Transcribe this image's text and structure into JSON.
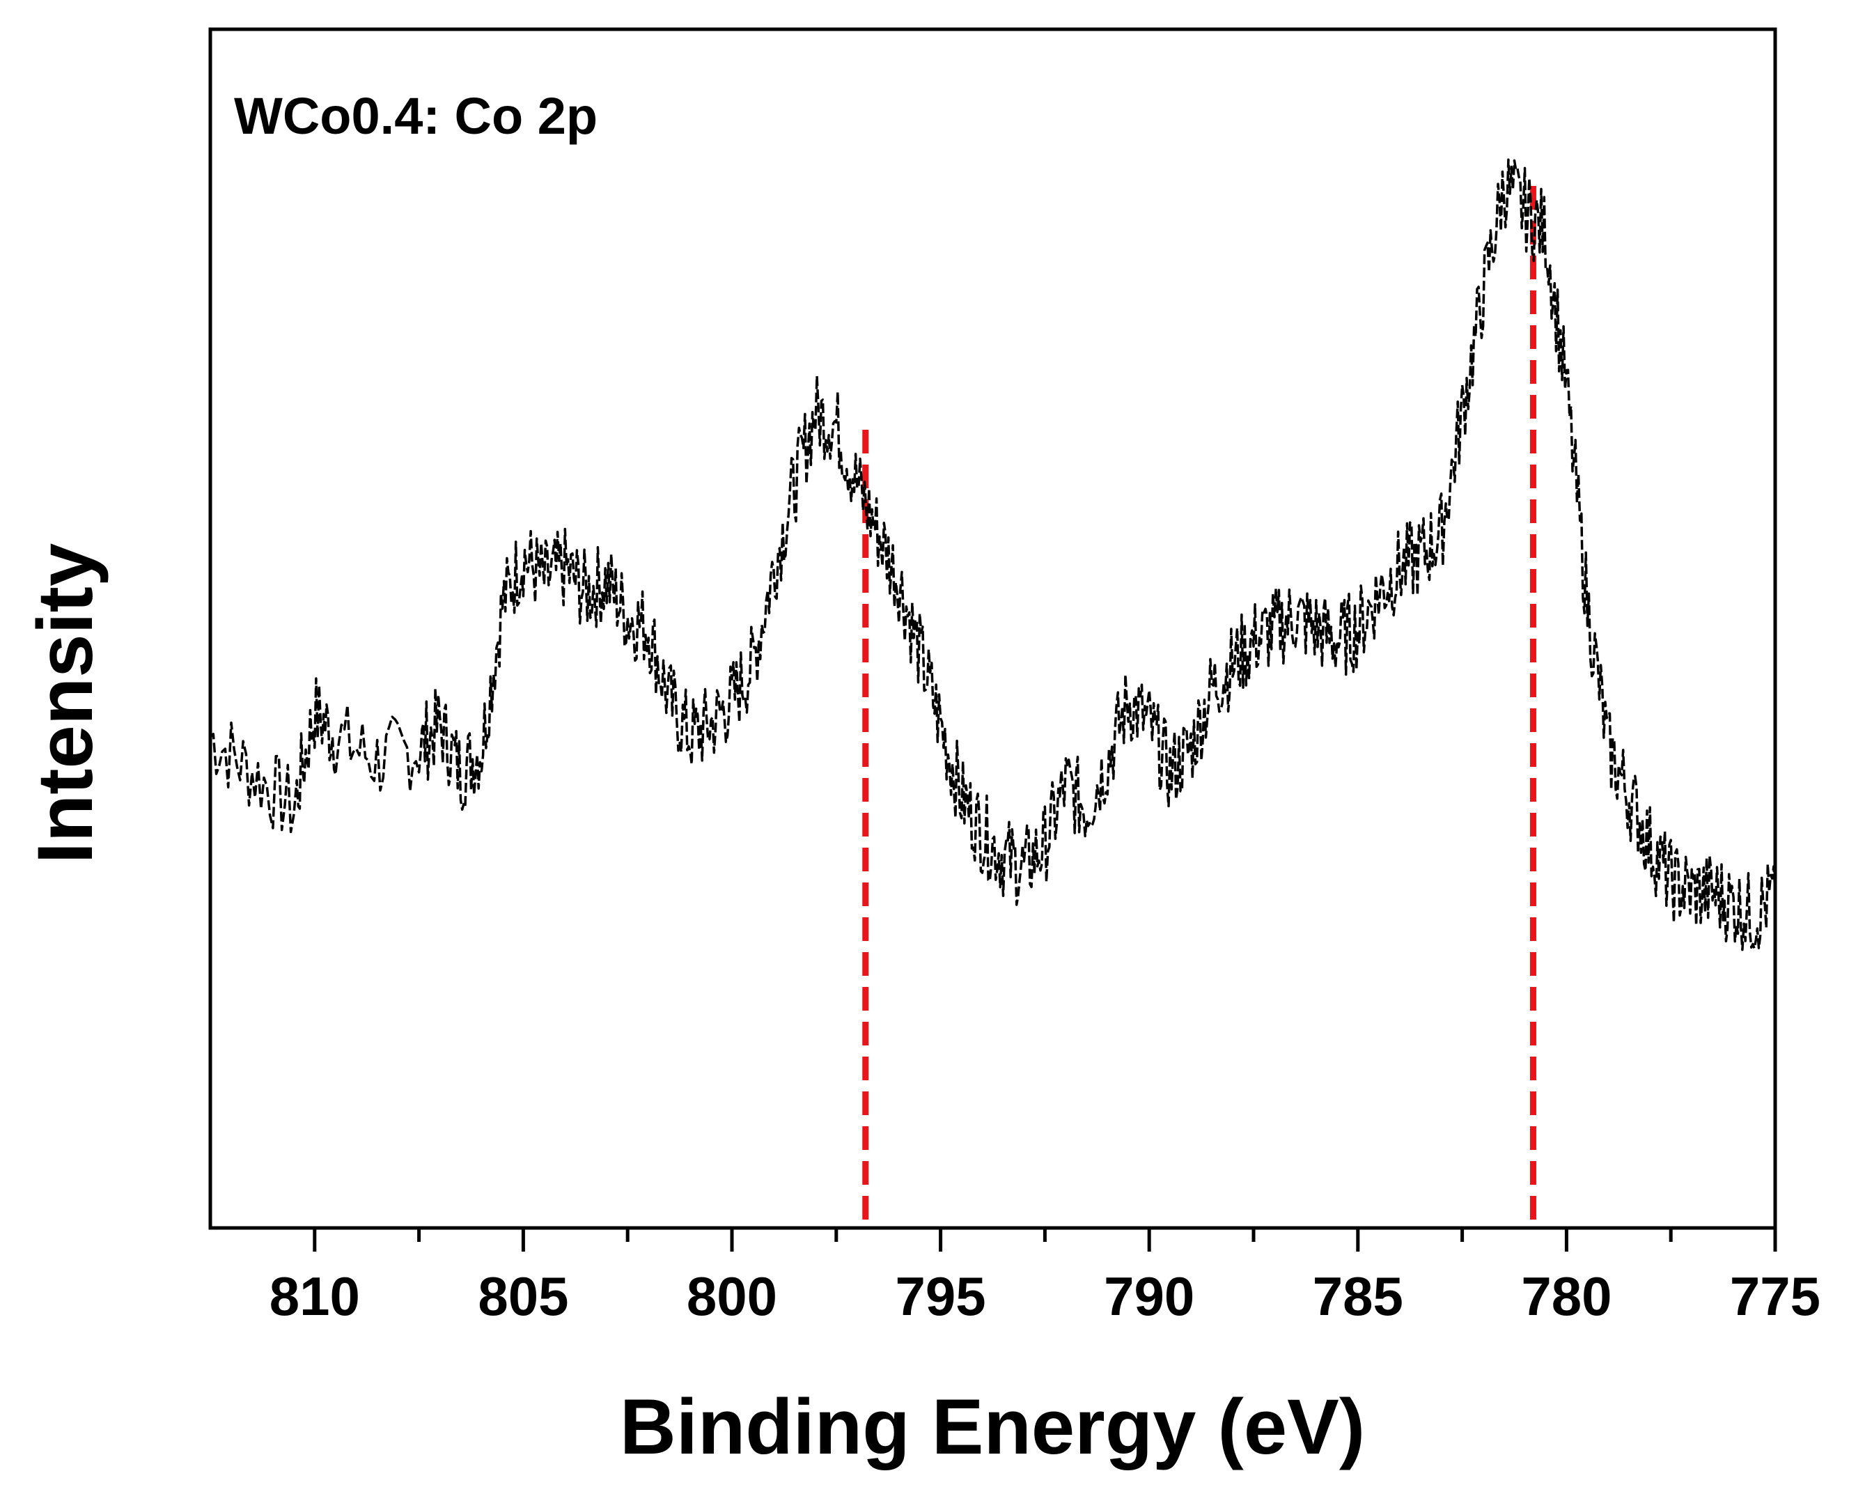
{
  "chart_data": {
    "type": "line",
    "title": "",
    "annotation": "WCo0.4: Co 2p",
    "xlabel": "Binding Energy (eV)",
    "ylabel": "Intensity",
    "xlim": [
      812.5,
      775
    ],
    "x_reversed": true,
    "ylim": [
      0,
      100
    ],
    "y_ticks_shown": false,
    "grid": false,
    "x_ticks": [
      810,
      805,
      800,
      795,
      790,
      785,
      780,
      775
    ],
    "x_tick_labels": [
      "810",
      "805",
      "800",
      "795",
      "790",
      "785",
      "780",
      "775"
    ],
    "series": [
      {
        "name": "WCo0.4 Co 2p spectrum",
        "style": "black dashed",
        "color": "#000000",
        "x": [
          812.5,
          811.5,
          810.5,
          810.0,
          809.5,
          808.5,
          807.5,
          807.0,
          806.5,
          806.0,
          805.5,
          805.0,
          804.5,
          804.0,
          803.5,
          803.0,
          802.5,
          802.0,
          801.5,
          801.0,
          800.5,
          800.0,
          799.5,
          799.0,
          798.5,
          798.0,
          797.5,
          797.0,
          796.5,
          796.0,
          795.5,
          795.0,
          794.5,
          794.0,
          793.5,
          793.0,
          792.5,
          792.0,
          791.5,
          791.0,
          790.5,
          790.0,
          789.5,
          789.0,
          788.5,
          788.0,
          787.5,
          787.0,
          786.5,
          786.0,
          785.5,
          785.0,
          784.5,
          784.0,
          783.5,
          783.0,
          782.5,
          782.0,
          781.5,
          781.0,
          780.5,
          780.0,
          779.5,
          779.0,
          778.5,
          778.0,
          777.5,
          777.0,
          776.5,
          776.0,
          775.5,
          775.0
        ],
        "y": [
          41,
          38,
          35,
          43,
          41,
          39,
          40,
          42,
          38,
          40,
          52,
          56,
          54,
          55,
          53,
          54,
          51,
          50,
          44,
          41,
          42,
          44,
          47,
          55,
          62,
          68,
          67,
          62,
          58,
          54,
          48,
          42,
          36,
          33,
          31,
          30,
          32,
          37,
          35,
          39,
          44,
          42,
          38,
          40,
          45,
          47,
          49,
          50,
          51,
          50,
          49,
          50,
          53,
          55,
          56,
          58,
          68,
          78,
          87,
          85,
          83,
          70,
          52,
          40,
          36,
          32,
          29,
          28,
          28,
          27,
          26,
          28
        ]
      }
    ],
    "reference_lines": [
      {
        "x": 796.8,
        "y_top": 67,
        "color": "#e8151b",
        "style": "dashed",
        "label": ""
      },
      {
        "x": 780.8,
        "y_top": 87,
        "color": "#e8151b",
        "style": "dashed",
        "label": ""
      }
    ]
  }
}
